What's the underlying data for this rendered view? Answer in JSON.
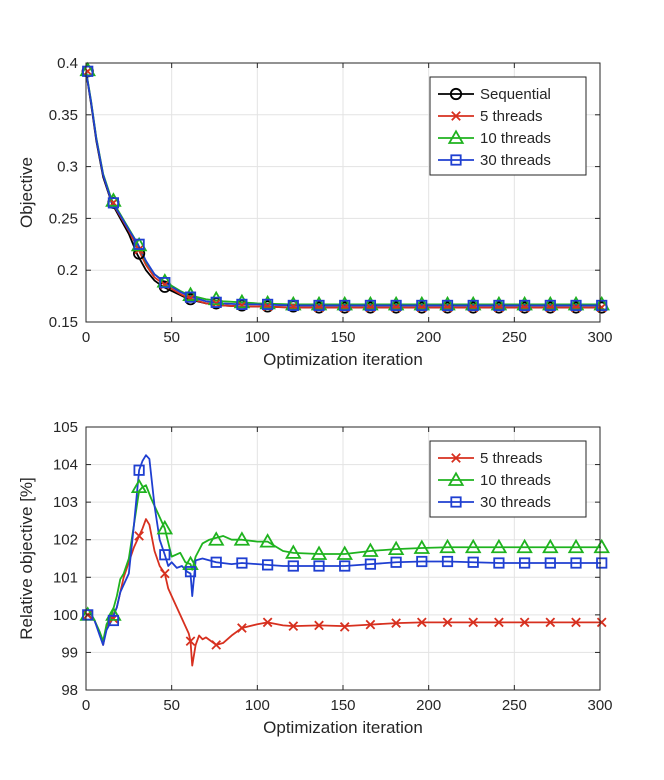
{
  "chart_data": [
    {
      "type": "line",
      "xlabel": "Optimization iteration",
      "ylabel": "Objective",
      "xlim": [
        0,
        300
      ],
      "ylim": [
        0.15,
        0.4
      ],
      "xticks": [
        0,
        50,
        100,
        150,
        200,
        250,
        300
      ],
      "yticks": [
        0.15,
        0.2,
        0.25,
        0.3,
        0.35,
        0.4
      ],
      "x_tick_labels": [
        "0",
        "50",
        "100",
        "150",
        "200",
        "250",
        "300"
      ],
      "y_tick_labels": [
        "0.15",
        "0.2",
        "0.25",
        "0.3",
        "0.35",
        "0.4"
      ],
      "grid": true,
      "legend_position": "top-right",
      "series": [
        {
          "name": "Sequential",
          "color": "#000000",
          "marker": "circle",
          "x": [
            0,
            3,
            6,
            10,
            15,
            20,
            25,
            30,
            35,
            40,
            45,
            50,
            55,
            60,
            70,
            80,
            90,
            100,
            120,
            150,
            200,
            250,
            300
          ],
          "y": [
            0.392,
            0.36,
            0.325,
            0.29,
            0.265,
            0.25,
            0.235,
            0.215,
            0.2,
            0.19,
            0.184,
            0.18,
            0.176,
            0.172,
            0.168,
            0.166,
            0.165,
            0.165,
            0.164,
            0.164,
            0.164,
            0.164,
            0.164
          ],
          "marker_x": [
            1,
            16,
            31,
            46,
            61,
            76,
            91,
            106,
            121,
            136,
            151,
            166,
            181,
            196,
            211,
            226,
            241,
            256,
            271,
            286,
            301
          ],
          "marker_y": [
            0.392,
            0.265,
            0.216,
            0.184,
            0.172,
            0.168,
            0.166,
            0.165,
            0.165,
            0.164,
            0.164,
            0.164,
            0.164,
            0.164,
            0.164,
            0.164,
            0.164,
            0.164,
            0.164,
            0.164,
            0.164
          ]
        },
        {
          "name": "5 threads",
          "color": "#d7301f",
          "marker": "x",
          "x": [
            0,
            3,
            6,
            10,
            15,
            20,
            25,
            30,
            35,
            40,
            45,
            50,
            55,
            60,
            70,
            80,
            90,
            100,
            120,
            150,
            200,
            250,
            300
          ],
          "y": [
            0.392,
            0.362,
            0.327,
            0.292,
            0.266,
            0.252,
            0.238,
            0.222,
            0.205,
            0.193,
            0.187,
            0.182,
            0.177,
            0.173,
            0.168,
            0.166,
            0.165,
            0.165,
            0.164,
            0.164,
            0.164,
            0.164,
            0.164
          ],
          "marker_x": [
            1,
            16,
            31,
            46,
            61,
            76,
            91,
            106,
            121,
            136,
            151,
            166,
            181,
            196,
            211,
            226,
            241,
            256,
            271,
            286,
            301
          ],
          "marker_y": [
            0.392,
            0.265,
            0.22,
            0.186,
            0.173,
            0.168,
            0.166,
            0.165,
            0.165,
            0.164,
            0.164,
            0.164,
            0.164,
            0.164,
            0.164,
            0.164,
            0.164,
            0.164,
            0.164,
            0.164,
            0.164
          ]
        },
        {
          "name": "10 threads",
          "color": "#1fb31f",
          "marker": "triangle",
          "x": [
            0,
            3,
            6,
            10,
            15,
            20,
            25,
            30,
            35,
            40,
            45,
            50,
            55,
            60,
            70,
            80,
            90,
            100,
            120,
            150,
            200,
            250,
            300
          ],
          "y": [
            0.393,
            0.363,
            0.328,
            0.293,
            0.268,
            0.254,
            0.24,
            0.226,
            0.208,
            0.196,
            0.19,
            0.185,
            0.18,
            0.176,
            0.172,
            0.17,
            0.169,
            0.168,
            0.167,
            0.167,
            0.167,
            0.167,
            0.167
          ],
          "marker_x": [
            1,
            16,
            31,
            46,
            61,
            76,
            91,
            106,
            121,
            136,
            151,
            166,
            181,
            196,
            211,
            226,
            241,
            256,
            271,
            286,
            301
          ],
          "marker_y": [
            0.393,
            0.267,
            0.224,
            0.189,
            0.176,
            0.172,
            0.169,
            0.168,
            0.167,
            0.167,
            0.167,
            0.167,
            0.167,
            0.167,
            0.167,
            0.167,
            0.167,
            0.167,
            0.167,
            0.167,
            0.167
          ]
        },
        {
          "name": "30 threads",
          "color": "#1f3fd1",
          "marker": "square",
          "x": [
            0,
            3,
            6,
            10,
            15,
            20,
            25,
            30,
            35,
            40,
            45,
            50,
            55,
            60,
            70,
            80,
            90,
            100,
            120,
            150,
            200,
            250,
            300
          ],
          "y": [
            0.392,
            0.362,
            0.327,
            0.292,
            0.266,
            0.253,
            0.239,
            0.226,
            0.209,
            0.196,
            0.189,
            0.184,
            0.179,
            0.175,
            0.17,
            0.168,
            0.167,
            0.167,
            0.166,
            0.166,
            0.166,
            0.166,
            0.166
          ],
          "marker_x": [
            1,
            16,
            31,
            46,
            61,
            76,
            91,
            106,
            121,
            136,
            151,
            166,
            181,
            196,
            211,
            226,
            241,
            256,
            271,
            286,
            301
          ],
          "marker_y": [
            0.392,
            0.265,
            0.225,
            0.188,
            0.174,
            0.169,
            0.167,
            0.167,
            0.166,
            0.166,
            0.166,
            0.166,
            0.166,
            0.166,
            0.166,
            0.166,
            0.166,
            0.166,
            0.166,
            0.166,
            0.166
          ]
        }
      ]
    },
    {
      "type": "line",
      "xlabel": "Optimization iteration",
      "ylabel": "Relative objective [%]",
      "xlim": [
        0,
        300
      ],
      "ylim": [
        98,
        105
      ],
      "xticks": [
        0,
        50,
        100,
        150,
        200,
        250,
        300
      ],
      "yticks": [
        98,
        99,
        100,
        101,
        102,
        103,
        104,
        105
      ],
      "x_tick_labels": [
        "0",
        "50",
        "100",
        "150",
        "200",
        "250",
        "300"
      ],
      "y_tick_labels": [
        "98",
        "99",
        "100",
        "101",
        "102",
        "103",
        "104",
        "105"
      ],
      "grid": true,
      "legend_position": "top-right",
      "series": [
        {
          "name": "5 threads",
          "color": "#d7301f",
          "marker": "x",
          "x": [
            1,
            5,
            8,
            10,
            12,
            15,
            18,
            20,
            22,
            25,
            28,
            31,
            33,
            35,
            37,
            40,
            43,
            46,
            48,
            50,
            52,
            55,
            58,
            60,
            61,
            62,
            64,
            66,
            68,
            70,
            73,
            76,
            80,
            85,
            91,
            100,
            106,
            115,
            121,
            136,
            151,
            166,
            181,
            196,
            211,
            226,
            241,
            256,
            271,
            286,
            301
          ],
          "y": [
            100,
            99.85,
            99.5,
            99.2,
            99.7,
            99.9,
            100.2,
            100.6,
            101.0,
            101.4,
            101.8,
            102.1,
            102.3,
            102.55,
            102.4,
            101.7,
            101.3,
            101.1,
            100.7,
            100.5,
            100.3,
            100.0,
            99.7,
            99.5,
            99.3,
            98.65,
            99.2,
            99.45,
            99.35,
            99.4,
            99.3,
            99.2,
            99.25,
            99.45,
            99.65,
            99.75,
            99.8,
            99.72,
            99.7,
            99.72,
            99.7,
            99.74,
            99.78,
            99.8,
            99.8,
            99.8,
            99.8,
            99.8,
            99.8,
            99.8,
            99.8
          ],
          "marker_x": [
            1,
            16,
            31,
            46,
            61,
            76,
            91,
            106,
            121,
            136,
            151,
            166,
            181,
            196,
            211,
            226,
            241,
            256,
            271,
            286,
            301
          ],
          "marker_y": [
            100,
            99.9,
            102.1,
            101.1,
            99.3,
            99.2,
            99.65,
            99.8,
            99.7,
            99.72,
            99.68,
            99.74,
            99.78,
            99.8,
            99.8,
            99.8,
            99.8,
            99.8,
            99.8,
            99.8,
            99.8
          ]
        },
        {
          "name": "10 threads",
          "color": "#1fb31f",
          "marker": "triangle",
          "x": [
            1,
            5,
            8,
            10,
            12,
            15,
            18,
            20,
            22,
            25,
            28,
            31,
            33,
            35,
            38,
            42,
            46,
            50,
            55,
            58,
            61,
            62,
            64,
            68,
            72,
            76,
            80,
            85,
            91,
            100,
            106,
            115,
            121,
            136,
            151,
            166,
            181,
            196,
            211,
            226,
            241,
            256,
            271,
            286,
            301
          ],
          "y": [
            100,
            99.85,
            99.55,
            99.3,
            99.75,
            100.0,
            100.5,
            100.95,
            101.1,
            101.5,
            102.4,
            103.3,
            103.4,
            103.45,
            103.1,
            102.7,
            102.3,
            101.55,
            101.65,
            101.4,
            101.35,
            101.2,
            101.55,
            101.9,
            102.0,
            102.05,
            102.1,
            102.0,
            102.0,
            101.95,
            101.95,
            101.7,
            101.65,
            101.62,
            101.62,
            101.7,
            101.75,
            101.78,
            101.8,
            101.8,
            101.8,
            101.8,
            101.8,
            101.8,
            101.8
          ],
          "marker_x": [
            1,
            16,
            31,
            46,
            61,
            76,
            91,
            106,
            121,
            136,
            151,
            166,
            181,
            196,
            211,
            226,
            241,
            256,
            271,
            286,
            301
          ],
          "marker_y": [
            100,
            100,
            103.4,
            102.3,
            101.35,
            102.0,
            102.0,
            101.95,
            101.65,
            101.62,
            101.62,
            101.7,
            101.75,
            101.78,
            101.8,
            101.8,
            101.8,
            101.8,
            101.8,
            101.8,
            101.8
          ]
        },
        {
          "name": "30 threads",
          "color": "#1f3fd1",
          "marker": "square",
          "x": [
            1,
            5,
            8,
            10,
            12,
            15,
            18,
            20,
            22,
            25,
            28,
            31,
            33,
            35,
            37,
            40,
            43,
            46,
            48,
            50,
            53,
            56,
            59,
            61,
            62,
            64,
            68,
            72,
            76,
            85,
            91,
            100,
            106,
            115,
            121,
            136,
            151,
            166,
            181,
            196,
            211,
            226,
            241,
            256,
            271,
            286,
            301
          ],
          "y": [
            100,
            99.85,
            99.45,
            99.2,
            99.6,
            99.85,
            100.2,
            100.6,
            100.8,
            101.1,
            102.4,
            103.85,
            104.1,
            104.25,
            104.15,
            102.9,
            102.0,
            101.6,
            101.3,
            101.4,
            101.25,
            101.3,
            101.15,
            101.1,
            100.5,
            101.45,
            101.5,
            101.45,
            101.4,
            101.35,
            101.38,
            101.35,
            101.33,
            101.3,
            101.3,
            101.3,
            101.3,
            101.35,
            101.4,
            101.42,
            101.42,
            101.4,
            101.38,
            101.38,
            101.38,
            101.38,
            101.38
          ],
          "marker_x": [
            1,
            16,
            31,
            46,
            61,
            76,
            91,
            106,
            121,
            136,
            151,
            166,
            181,
            196,
            211,
            226,
            241,
            256,
            271,
            286,
            301
          ],
          "marker_y": [
            100,
            99.85,
            103.85,
            101.6,
            101.15,
            101.4,
            101.38,
            101.33,
            101.3,
            101.3,
            101.3,
            101.35,
            101.4,
            101.42,
            101.42,
            101.4,
            101.38,
            101.38,
            101.38,
            101.38,
            101.38
          ]
        }
      ]
    }
  ]
}
